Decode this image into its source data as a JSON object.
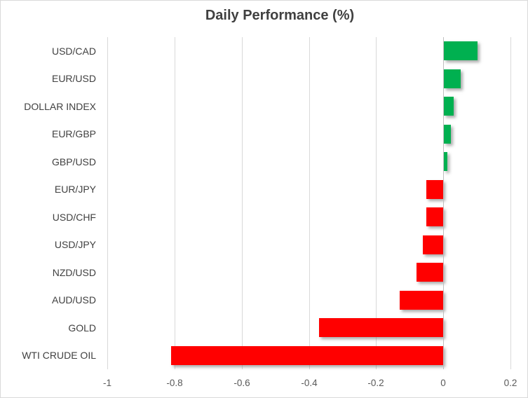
{
  "chart_data": {
    "type": "bar",
    "orientation": "horizontal",
    "title": "Daily Performance (%)",
    "categories": [
      "USD/CAD",
      "EUR/USD",
      "DOLLAR INDEX",
      "EUR/GBP",
      "GBP/USD",
      "EUR/JPY",
      "USD/CHF",
      "USD/JPY",
      "NZD/USD",
      "AUD/USD",
      "GOLD",
      "WTI CRUDE OIL"
    ],
    "values": [
      0.1,
      0.05,
      0.03,
      0.02,
      0.01,
      -0.05,
      -0.05,
      -0.06,
      -0.08,
      -0.13,
      -0.37,
      -0.81
    ],
    "xlabel": "",
    "ylabel": "",
    "xlim": [
      -1,
      0.2
    ],
    "xticks": [
      -1,
      -0.8,
      -0.6,
      -0.4,
      -0.2,
      0,
      0.2
    ],
    "xtick_labels": [
      "-1",
      "-0.8",
      "-0.6",
      "-0.4",
      "-0.2",
      "0",
      "0.2"
    ],
    "grid": true,
    "legend": false,
    "colors": {
      "positive": "#00B050",
      "negative": "#FF0000",
      "gridline": "#D9D9D9",
      "axis_line": "#BFBFBF",
      "title_text": "#404040",
      "category_text": "#404040",
      "tick_text": "#595959",
      "background": "#FFFFFF",
      "border": "#D9D9D9"
    }
  }
}
